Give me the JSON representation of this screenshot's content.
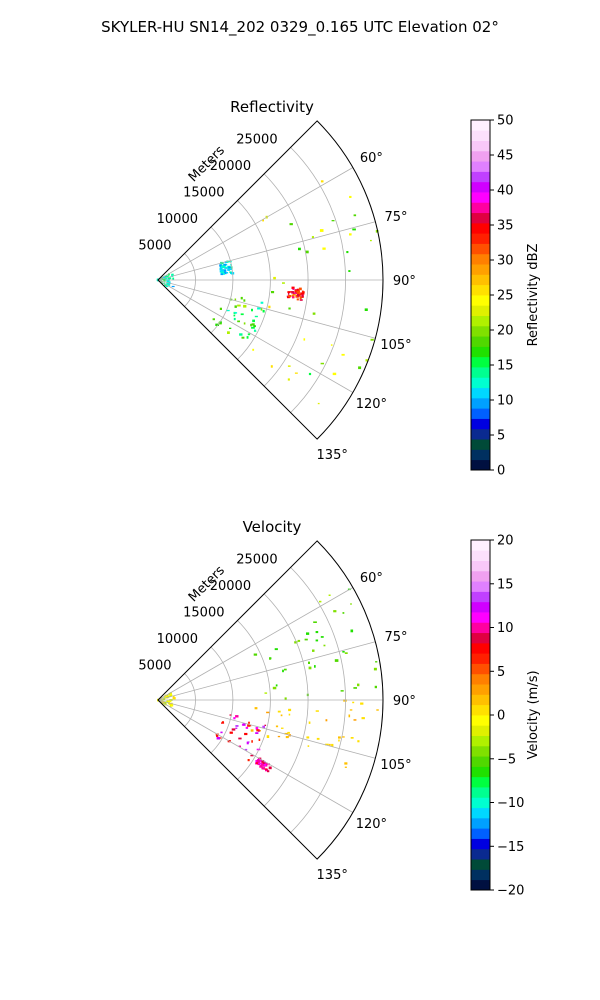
{
  "figure": {
    "suptitle": "SKYLER-HU  SN14_202  0329_0.165 UTC Elevation 02°"
  },
  "chart_data": [
    {
      "type": "heatmap",
      "title": "Reflectivity",
      "projection": "polar-sector",
      "radial_label": "Meters",
      "r_ticks": [
        5000,
        10000,
        15000,
        20000,
        25000
      ],
      "r_tick_labels": [
        "5000",
        "10000",
        "15000",
        "20000",
        "25000"
      ],
      "r_max": 30000,
      "theta_range_deg": [
        45,
        135
      ],
      "theta_ticks_deg": [
        60,
        75,
        90,
        105,
        120,
        135
      ],
      "theta_tick_labels": [
        "60°",
        "75°",
        "90°",
        "105°",
        "120°",
        "135°"
      ],
      "grid": true,
      "colorbar": {
        "label": "Reflectivity dBZ",
        "vmin": 0,
        "vmax": 50,
        "ticks": [
          0,
          5,
          10,
          15,
          20,
          25,
          30,
          35,
          40,
          45,
          50
        ],
        "tick_labels": [
          "0",
          "5",
          "10",
          "15",
          "20",
          "25",
          "30",
          "35",
          "40",
          "45",
          "50"
        ],
        "colors": [
          "#001040",
          "#003060",
          "#004a38",
          "#0a2a90",
          "#0000e0",
          "#0060ff",
          "#00a0ff",
          "#00d8ff",
          "#00ffd0",
          "#00ff90",
          "#00ff40",
          "#20e000",
          "#50d800",
          "#80e000",
          "#b0f000",
          "#e0f000",
          "#ffff00",
          "#ffe000",
          "#ffc000",
          "#ffa000",
          "#ff8000",
          "#ff5000",
          "#ff2000",
          "#ff0000",
          "#e00040",
          "#ff00a0",
          "#ff00ff",
          "#d000ff",
          "#c040ff",
          "#e080ff",
          "#f0a0f0",
          "#f8c8f8",
          "#fce0fc",
          "#fff0ff"
        ]
      },
      "features": [
        {
          "kind": "near-cluster",
          "theta": [
            60,
            125
          ],
          "r": [
            0,
            2200
          ],
          "value": [
            10,
            16
          ]
        },
        {
          "kind": "arc-band",
          "theta": [
            101,
            128
          ],
          "r": [
            9000,
            15000
          ],
          "value": [
            12,
            22
          ]
        },
        {
          "kind": "far-field",
          "theta": [
            58,
            128
          ],
          "r": [
            15000,
            30000
          ],
          "value": [
            16,
            26
          ]
        },
        {
          "kind": "core",
          "theta": [
            93,
            98
          ],
          "r": [
            17500,
            19500
          ],
          "value": [
            30,
            38
          ]
        },
        {
          "kind": "ring",
          "theta": [
            75,
            85
          ],
          "r": [
            8500,
            10000
          ],
          "value": [
            10,
            14
          ]
        }
      ]
    },
    {
      "type": "heatmap",
      "title": "Velocity",
      "projection": "polar-sector",
      "radial_label": "Meters",
      "r_ticks": [
        5000,
        10000,
        15000,
        20000,
        25000
      ],
      "r_tick_labels": [
        "5000",
        "10000",
        "15000",
        "20000",
        "25000"
      ],
      "r_max": 30000,
      "theta_range_deg": [
        45,
        135
      ],
      "theta_ticks_deg": [
        60,
        75,
        90,
        105,
        120,
        135
      ],
      "theta_tick_labels": [
        "60°",
        "75°",
        "90°",
        "105°",
        "120°",
        "135°"
      ],
      "grid": true,
      "colorbar": {
        "label": "Velocity (m/s)",
        "vmin": -20,
        "vmax": 20,
        "ticks": [
          -20,
          -15,
          -10,
          -5,
          0,
          5,
          10,
          15,
          20
        ],
        "tick_labels": [
          "−20",
          "−15",
          "−10",
          "−5",
          "0",
          "5",
          "10",
          "15",
          "20"
        ],
        "colors": [
          "#001040",
          "#003060",
          "#004a38",
          "#0a2a90",
          "#0000e0",
          "#0060ff",
          "#00a0ff",
          "#00d8ff",
          "#00ffd0",
          "#00ff90",
          "#00ff40",
          "#20e000",
          "#50d800",
          "#80e000",
          "#b0f000",
          "#e0f000",
          "#ffff00",
          "#ffe000",
          "#ffc000",
          "#ffa000",
          "#ff8000",
          "#ff5000",
          "#ff2000",
          "#ff0000",
          "#e00040",
          "#ff00a0",
          "#ff00ff",
          "#d000ff",
          "#c040ff",
          "#e080ff",
          "#f0a0f0",
          "#f8c8f8",
          "#fce0fc",
          "#fff0ff"
        ]
      },
      "features": [
        {
          "kind": "north-field",
          "theta": [
            58,
            90
          ],
          "r": [
            14000,
            30000
          ],
          "value": [
            -7,
            -3
          ]
        },
        {
          "kind": "south-field",
          "theta": [
            90,
            110
          ],
          "r": [
            13000,
            30000
          ],
          "value": [
            0,
            3
          ]
        },
        {
          "kind": "arc-band",
          "theta": [
            101,
            125
          ],
          "r": [
            9000,
            15000
          ],
          "value": [
            6,
            14
          ]
        },
        {
          "kind": "hot-spot",
          "theta": [
            120,
            123
          ],
          "r": [
            15500,
            17500
          ],
          "value": [
            8,
            11
          ]
        },
        {
          "kind": "near-cluster",
          "theta": [
            60,
            125
          ],
          "r": [
            0,
            2200
          ],
          "value": [
            -3,
            1
          ]
        }
      ]
    }
  ]
}
